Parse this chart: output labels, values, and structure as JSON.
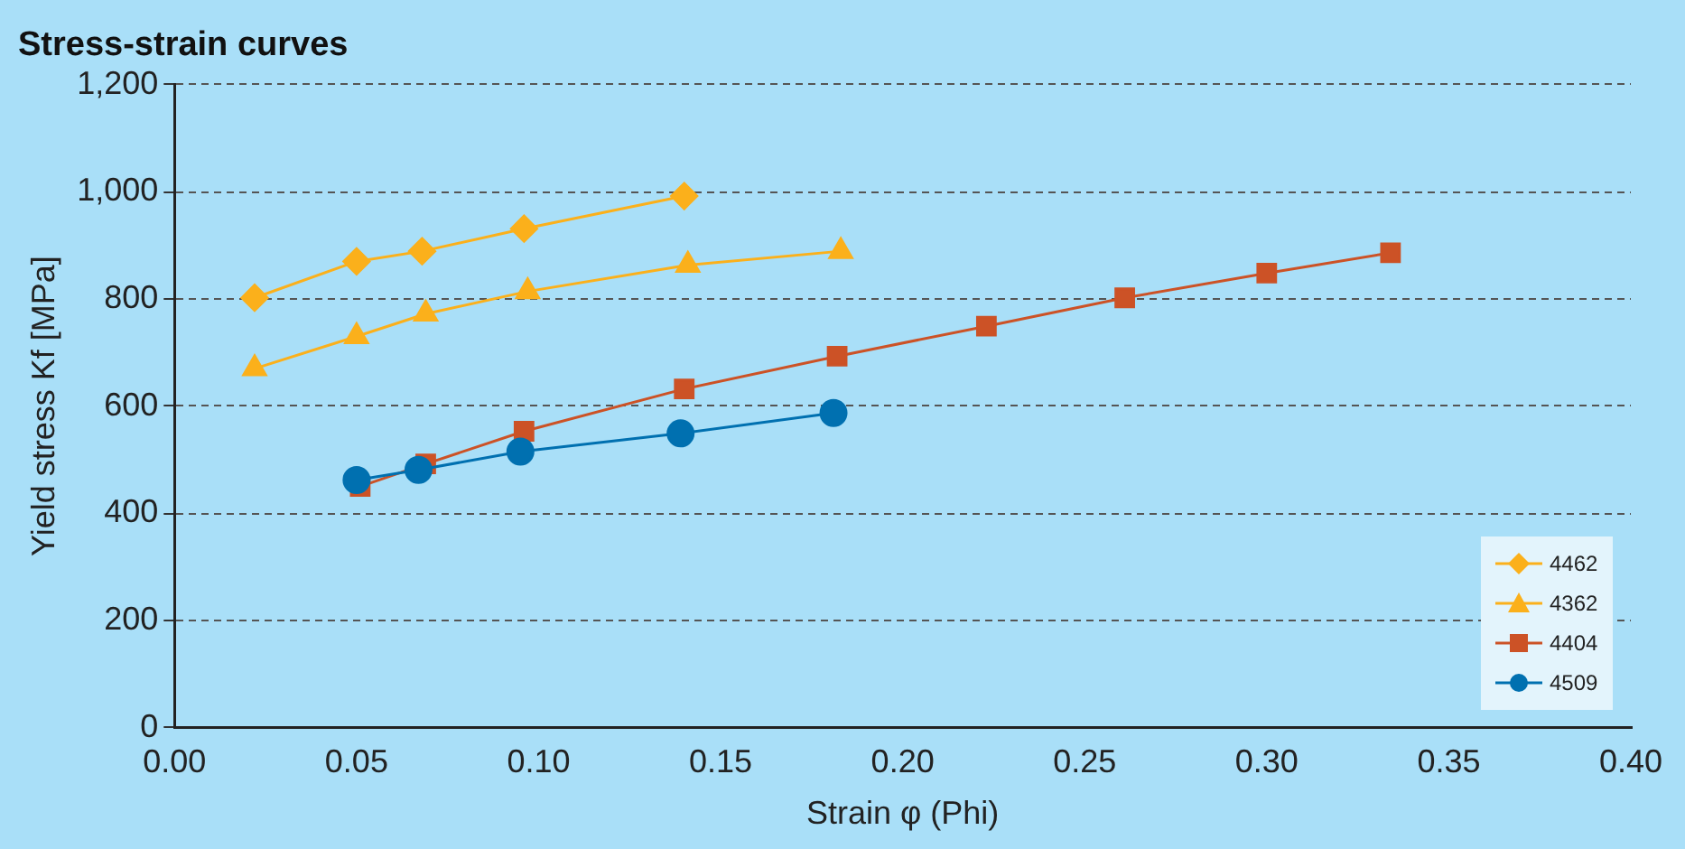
{
  "chart_data": {
    "type": "line",
    "title": "Stress-strain curves",
    "xlabel": "Strain φ (Phi)",
    "ylabel": "Yield stress Kf [MPa]",
    "xlim": [
      0,
      0.4
    ],
    "xticks": [
      {
        "value": 0,
        "label": "0.00"
      },
      {
        "value": 0.05,
        "label": "0.05"
      },
      {
        "value": 0.1,
        "label": "0.10"
      },
      {
        "value": 0.15,
        "label": "0.15"
      },
      {
        "value": 0.2,
        "label": "0.20"
      },
      {
        "value": 0.25,
        "label": "0.25"
      },
      {
        "value": 0.3,
        "label": "0.30"
      },
      {
        "value": 0.35,
        "label": "0.35"
      },
      {
        "value": 0.4,
        "label": "0.40"
      }
    ],
    "ylim": [
      0,
      1200
    ],
    "yticks": [
      0,
      200,
      400,
      600,
      800,
      {
        "value": 1000,
        "label": "1,000"
      },
      {
        "value": 1200,
        "label": "1,200"
      }
    ],
    "grid": "y",
    "legend": "bottom right",
    "line_style": "solid",
    "series": [
      {
        "name": "4462",
        "color": "#fbb01b",
        "marker": "diamond",
        "x": [
          0.022,
          0.05,
          0.068,
          0.096,
          0.14
        ],
        "values": [
          802,
          870,
          889,
          931,
          992
        ]
      },
      {
        "name": "4362",
        "color": "#fbb01b",
        "marker": "triangle",
        "x": [
          0.022,
          0.05,
          0.069,
          0.097,
          0.141,
          0.183
        ],
        "values": [
          670,
          730,
          772,
          814,
          863,
          889
        ]
      },
      {
        "name": "4404",
        "color": "#cc5226",
        "marker": "square",
        "x": [
          0.051,
          0.069,
          0.096,
          0.14,
          0.182,
          0.223,
          0.261,
          0.3,
          0.334
        ],
        "values": [
          450,
          492,
          553,
          632,
          693,
          749,
          802,
          848,
          886
        ]
      },
      {
        "name": "4509",
        "color": "#0070b0",
        "marker": "circle",
        "x": [
          0.05,
          0.067,
          0.095,
          0.139,
          0.181
        ],
        "values": [
          462,
          481,
          515,
          549,
          587
        ]
      }
    ]
  }
}
